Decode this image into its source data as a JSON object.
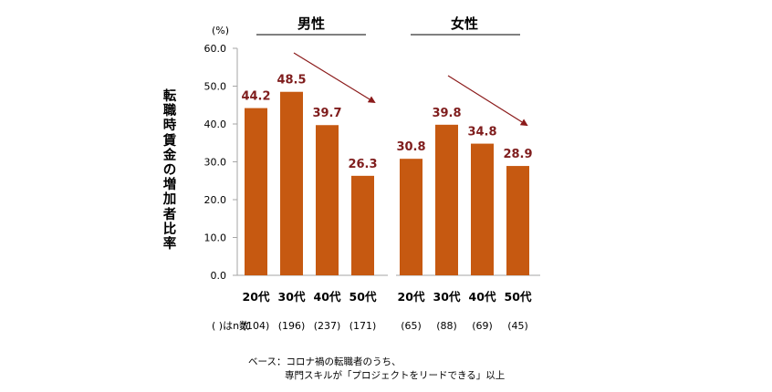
{
  "chart_data": {
    "type": "bar",
    "unit_label": "(%)",
    "ylabel": "転職時賃金の増加者比率",
    "ylim": [
      0,
      60
    ],
    "yticks": [
      "60.0",
      "50.0",
      "40.0",
      "30.0",
      "20.0",
      "10.0",
      "0.0"
    ],
    "groups": [
      {
        "name": "男性",
        "categories": [
          "20代",
          "30代",
          "40代",
          "50代"
        ],
        "values": [
          44.2,
          48.5,
          39.7,
          26.3
        ],
        "labels": [
          "44.2",
          "48.5",
          "39.7",
          "26.3"
        ],
        "n": [
          "(104)",
          "(196)",
          "(237)",
          "(171)"
        ]
      },
      {
        "name": "女性",
        "categories": [
          "20代",
          "30代",
          "40代",
          "50代"
        ],
        "values": [
          30.8,
          39.8,
          34.8,
          28.9
        ],
        "labels": [
          "30.8",
          "39.8",
          "34.8",
          "28.9"
        ],
        "n": [
          "(65)",
          "(88)",
          "(69)",
          "(45)"
        ]
      }
    ],
    "n_label": "( )はn数",
    "bar_color": "#c65911",
    "label_color": "#7f1d1d",
    "arrow_color": "#8b1a1a"
  },
  "footnote": {
    "line1": "ベース：コロナ禍の転職者のうち、",
    "line2": "専門スキルが「プロジェクトをリードできる」以上"
  }
}
